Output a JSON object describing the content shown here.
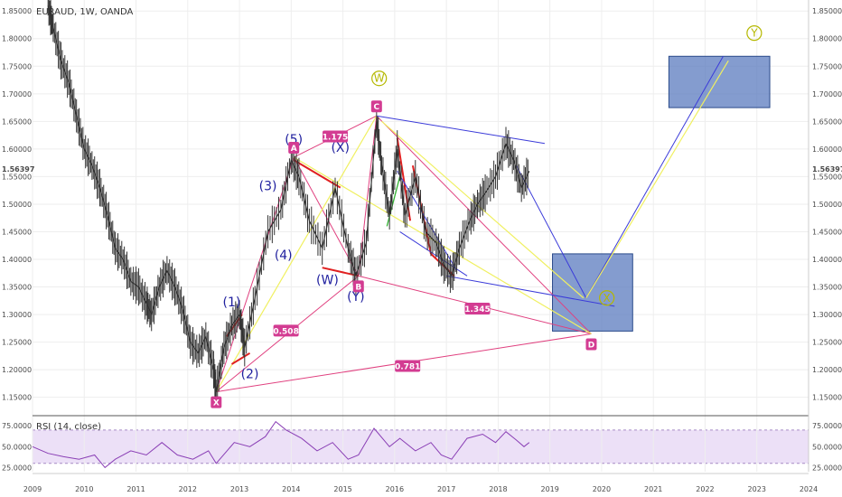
{
  "header": {
    "title": "EURAUD, 1W, OANDA"
  },
  "rsi_header": "RSI (14, close)",
  "last_price": "1.56397",
  "chart_data": {
    "type": "line",
    "title": "EURAUD, 1W, OANDA",
    "xlabel": "",
    "ylabel": "",
    "ylim": [
      1.12,
      1.87
    ],
    "x_ticks": [
      "2009",
      "2010",
      "2011",
      "2012",
      "2013",
      "2014",
      "2015",
      "2016",
      "2017",
      "2018",
      "2019",
      "2020",
      "2021",
      "2022",
      "2023",
      "2024"
    ],
    "y_ticks": [
      "1.85000",
      "1.80000",
      "1.75000",
      "1.70000",
      "1.65000",
      "1.60000",
      "1.55000",
      "1.50000",
      "1.45000",
      "1.40000",
      "1.35000",
      "1.30000",
      "1.25000",
      "1.20000",
      "1.15000"
    ],
    "series": [
      {
        "values": [
          {
            "x": 2009.3,
            "y": 1.86
          },
          {
            "x": 2009.4,
            "y": 1.82
          },
          {
            "x": 2009.55,
            "y": 1.76
          },
          {
            "x": 2009.7,
            "y": 1.72
          },
          {
            "x": 2009.85,
            "y": 1.66
          },
          {
            "x": 2010.0,
            "y": 1.6
          },
          {
            "x": 2010.15,
            "y": 1.57
          },
          {
            "x": 2010.3,
            "y": 1.53
          },
          {
            "x": 2010.45,
            "y": 1.48
          },
          {
            "x": 2010.6,
            "y": 1.42
          },
          {
            "x": 2010.75,
            "y": 1.4
          },
          {
            "x": 2010.9,
            "y": 1.36
          },
          {
            "x": 2011.05,
            "y": 1.35
          },
          {
            "x": 2011.2,
            "y": 1.32
          },
          {
            "x": 2011.3,
            "y": 1.3
          },
          {
            "x": 2011.45,
            "y": 1.35
          },
          {
            "x": 2011.6,
            "y": 1.38
          },
          {
            "x": 2011.75,
            "y": 1.35
          },
          {
            "x": 2011.9,
            "y": 1.31
          },
          {
            "x": 2012.05,
            "y": 1.25
          },
          {
            "x": 2012.2,
            "y": 1.23
          },
          {
            "x": 2012.35,
            "y": 1.26
          },
          {
            "x": 2012.5,
            "y": 1.2
          },
          {
            "x": 2012.55,
            "y": 1.16
          },
          {
            "x": 2012.7,
            "y": 1.24
          },
          {
            "x": 2012.85,
            "y": 1.28
          },
          {
            "x": 2013.0,
            "y": 1.3
          },
          {
            "x": 2013.1,
            "y": 1.24
          },
          {
            "x": 2013.3,
            "y": 1.33
          },
          {
            "x": 2013.55,
            "y": 1.45
          },
          {
            "x": 2013.8,
            "y": 1.49
          },
          {
            "x": 2014.0,
            "y": 1.58
          },
          {
            "x": 2014.15,
            "y": 1.55
          },
          {
            "x": 2014.35,
            "y": 1.47
          },
          {
            "x": 2014.6,
            "y": 1.42
          },
          {
            "x": 2014.85,
            "y": 1.53
          },
          {
            "x": 2015.1,
            "y": 1.42
          },
          {
            "x": 2015.25,
            "y": 1.37
          },
          {
            "x": 2015.45,
            "y": 1.43
          },
          {
            "x": 2015.65,
            "y": 1.65
          },
          {
            "x": 2015.75,
            "y": 1.57
          },
          {
            "x": 2015.9,
            "y": 1.48
          },
          {
            "x": 2016.05,
            "y": 1.6
          },
          {
            "x": 2016.2,
            "y": 1.48
          },
          {
            "x": 2016.4,
            "y": 1.55
          },
          {
            "x": 2016.6,
            "y": 1.45
          },
          {
            "x": 2016.8,
            "y": 1.43
          },
          {
            "x": 2016.95,
            "y": 1.39
          },
          {
            "x": 2017.1,
            "y": 1.37
          },
          {
            "x": 2017.25,
            "y": 1.42
          },
          {
            "x": 2017.45,
            "y": 1.47
          },
          {
            "x": 2017.6,
            "y": 1.5
          },
          {
            "x": 2017.75,
            "y": 1.52
          },
          {
            "x": 2017.95,
            "y": 1.55
          },
          {
            "x": 2018.15,
            "y": 1.61
          },
          {
            "x": 2018.3,
            "y": 1.58
          },
          {
            "x": 2018.45,
            "y": 1.53
          },
          {
            "x": 2018.6,
            "y": 1.56
          }
        ]
      }
    ],
    "rsi": {
      "ylim": [
        20,
        85
      ],
      "levels": [
        70,
        30
      ],
      "ticks": [
        "75.0000",
        "50.0000",
        "25.0000"
      ],
      "values": [
        {
          "x": 2009.0,
          "y": 50
        },
        {
          "x": 2009.3,
          "y": 42
        },
        {
          "x": 2009.6,
          "y": 38
        },
        {
          "x": 2009.9,
          "y": 35
        },
        {
          "x": 2010.2,
          "y": 40
        },
        {
          "x": 2010.4,
          "y": 25
        },
        {
          "x": 2010.6,
          "y": 35
        },
        {
          "x": 2010.9,
          "y": 45
        },
        {
          "x": 2011.2,
          "y": 40
        },
        {
          "x": 2011.5,
          "y": 55
        },
        {
          "x": 2011.8,
          "y": 40
        },
        {
          "x": 2012.1,
          "y": 35
        },
        {
          "x": 2012.4,
          "y": 45
        },
        {
          "x": 2012.55,
          "y": 30
        },
        {
          "x": 2012.9,
          "y": 55
        },
        {
          "x": 2013.2,
          "y": 50
        },
        {
          "x": 2013.5,
          "y": 62
        },
        {
          "x": 2013.7,
          "y": 80
        },
        {
          "x": 2013.9,
          "y": 70
        },
        {
          "x": 2014.2,
          "y": 60
        },
        {
          "x": 2014.5,
          "y": 45
        },
        {
          "x": 2014.8,
          "y": 55
        },
        {
          "x": 2015.1,
          "y": 35
        },
        {
          "x": 2015.3,
          "y": 40
        },
        {
          "x": 2015.6,
          "y": 72
        },
        {
          "x": 2015.9,
          "y": 50
        },
        {
          "x": 2016.1,
          "y": 60
        },
        {
          "x": 2016.4,
          "y": 45
        },
        {
          "x": 2016.7,
          "y": 55
        },
        {
          "x": 2016.9,
          "y": 40
        },
        {
          "x": 2017.1,
          "y": 35
        },
        {
          "x": 2017.4,
          "y": 60
        },
        {
          "x": 2017.7,
          "y": 65
        },
        {
          "x": 2017.95,
          "y": 55
        },
        {
          "x": 2018.15,
          "y": 68
        },
        {
          "x": 2018.35,
          "y": 58
        },
        {
          "x": 2018.5,
          "y": 50
        },
        {
          "x": 2018.6,
          "y": 55
        }
      ]
    },
    "pattern_points": [
      {
        "label": "X",
        "x": 2012.55,
        "y": 1.16
      },
      {
        "label": "A",
        "x": 2014.05,
        "y": 1.585
      },
      {
        "label": "B",
        "x": 2015.3,
        "y": 1.37
      },
      {
        "label": "C",
        "x": 2015.65,
        "y": 1.66
      },
      {
        "label": "D",
        "x": 2019.8,
        "y": 1.265
      }
    ],
    "ratios": [
      {
        "label": "1.175",
        "x": 2014.85,
        "y": 1.622
      },
      {
        "label": "0.508",
        "x": 2013.9,
        "y": 1.27
      },
      {
        "label": "1.345",
        "x": 2017.6,
        "y": 1.31
      },
      {
        "label": "0.781",
        "x": 2016.25,
        "y": 1.206
      }
    ],
    "wave_labels": [
      {
        "label": "(1)",
        "x": 2012.85,
        "y": 1.315
      },
      {
        "label": "(2)",
        "x": 2013.2,
        "y": 1.185
      },
      {
        "label": "(3)",
        "x": 2013.55,
        "y": 1.525
      },
      {
        "label": "(4)",
        "x": 2013.85,
        "y": 1.4
      },
      {
        "label": "(5)",
        "x": 2014.05,
        "y": 1.61
      },
      {
        "label": "(X)",
        "x": 2014.95,
        "y": 1.595
      },
      {
        "label": "(W)",
        "x": 2014.7,
        "y": 1.355
      },
      {
        "label": "(Y)",
        "x": 2015.25,
        "y": 1.325
      }
    ],
    "circle_labels": [
      {
        "label": "W",
        "x": 2015.7,
        "y": 1.728
      },
      {
        "label": "Y",
        "x": 2022.95,
        "y": 1.81
      },
      {
        "label": "X",
        "x": 2020.1,
        "y": 1.33
      }
    ],
    "zones": [
      {
        "x0": 2019.05,
        "x1": 2020.6,
        "y0": 1.27,
        "y1": 1.41
      },
      {
        "x0": 2021.3,
        "x1": 2023.25,
        "y0": 1.675,
        "y1": 1.768
      }
    ]
  }
}
